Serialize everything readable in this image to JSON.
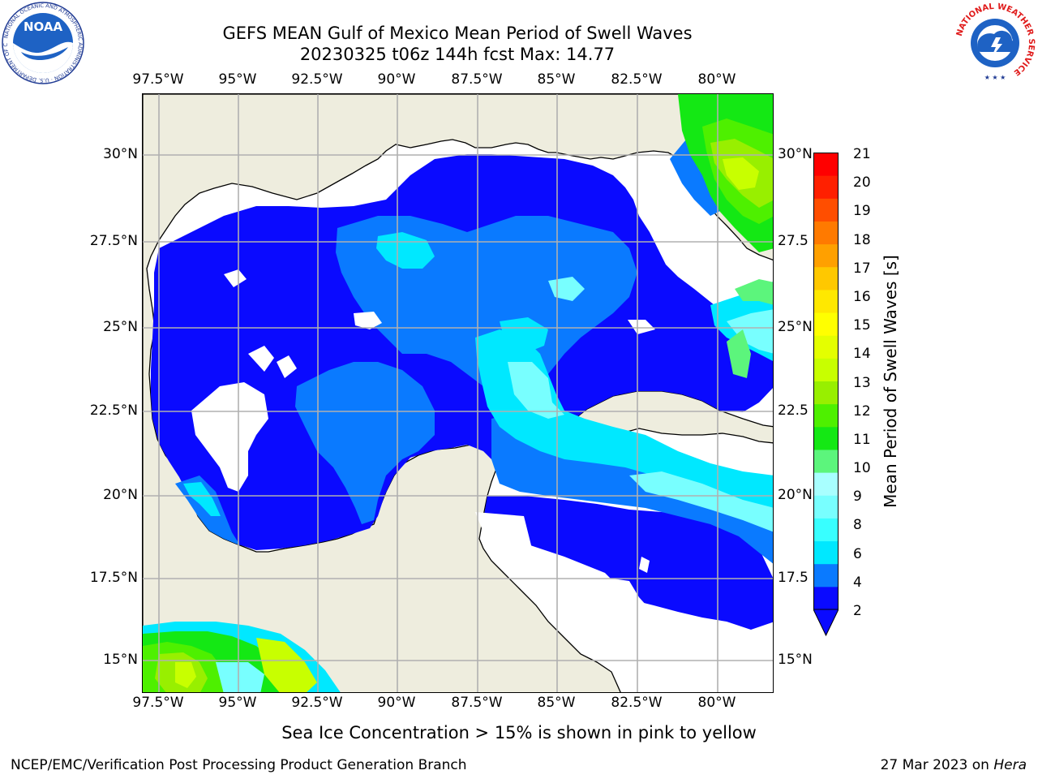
{
  "header": {
    "title_line1": "GEFS MEAN Gulf of Mexico Mean Period of Swell Waves",
    "title_line2": "20230325 t06z 144h fcst   Max: 14.77"
  },
  "map": {
    "lon_labels": [
      "97.5°W",
      "95°W",
      "92.5°W",
      "90°W",
      "87.5°W",
      "85°W",
      "82.5°W",
      "80°W"
    ],
    "lat_labels_left": [
      "30°N",
      "27.5°N",
      "25°N",
      "22.5°N",
      "20°N",
      "17.5°N",
      "15°N"
    ],
    "lat_labels_right": [
      "30°N",
      "27.5",
      "25°N",
      "22.5",
      "20°N",
      "17.5",
      "15°N"
    ],
    "land_color": "#eeedde",
    "grid_color": "#b0b0b0"
  },
  "colorbar": {
    "label": "Mean Period of Swell Waves [s]",
    "ticks": [
      "21",
      "20",
      "19",
      "18",
      "17",
      "16",
      "15",
      "14",
      "13",
      "12",
      "11",
      "10",
      "9",
      "8",
      "6",
      "4",
      "2"
    ],
    "colors_bottom_to_top": [
      "#0a0aff",
      "#0a7aff",
      "#00e8ff",
      "#38ffff",
      "#78ffff",
      "#a8ffff",
      "#5cf57c",
      "#14e814",
      "#4ef000",
      "#98ef00",
      "#c8ff00",
      "#e4ff00",
      "#ffff00",
      "#ffe800",
      "#ffc800",
      "#ffa000",
      "#ff7a00",
      "#ff4e00",
      "#ff2000",
      "#ff0000"
    ]
  },
  "footer": {
    "ice_note": "Sea Ice Concentration > 15% is shown in pink to yellow",
    "left": "NCEP/EMC/Verification Post Processing Product Generation Branch",
    "right_date": "27 Mar 2023 on ",
    "right_host": "Hera"
  },
  "logos": {
    "noaa": "NOAA",
    "noaa_ring": "NATIONAL OCEANIC AND ATMOSPHERIC ADMINISTRATION · U.S. DEPARTMENT OF COMMERCE",
    "nws_ring": "NATIONAL WEATHER SERVICE"
  }
}
